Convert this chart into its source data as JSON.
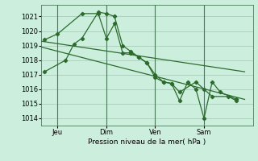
{
  "background_color": "#cceedd",
  "grid_color": "#aaccbb",
  "line_color": "#2d6b2d",
  "marker_color": "#2d6b2d",
  "ylabel": "Pression niveau de la mer( hPa )",
  "ylim": [
    1013.5,
    1021.8
  ],
  "yticks": [
    1014,
    1015,
    1016,
    1017,
    1018,
    1019,
    1020,
    1021
  ],
  "x_ticks_labels": [
    "Jeu",
    "Dim",
    "Ven",
    "Sam"
  ],
  "x_ticks_pos": [
    1,
    4,
    7,
    10
  ],
  "vlines_pos": [
    1,
    4,
    7,
    10
  ],
  "xlim": [
    0,
    13
  ],
  "series1_x": [
    0.2,
    1.5,
    2.0,
    2.5,
    3.5,
    4.0,
    4.5,
    5.0,
    5.5,
    6.0,
    6.5,
    7.0,
    7.5,
    8.0,
    8.5,
    9.0,
    9.5,
    10.0,
    10.5,
    11.0,
    12.0
  ],
  "series1_y": [
    1017.2,
    1018.0,
    1019.1,
    1019.5,
    1021.3,
    1021.2,
    1021.0,
    1019.0,
    1018.6,
    1018.2,
    1017.8,
    1017.0,
    1016.5,
    1016.4,
    1015.2,
    1016.5,
    1016.0,
    1014.0,
    1016.5,
    1015.8,
    1015.3
  ],
  "series2_x": [
    0.2,
    1.0,
    2.5,
    3.5,
    4.0,
    4.5,
    5.0,
    5.5,
    6.0,
    6.5,
    7.0,
    7.5,
    8.0,
    8.5,
    9.5,
    10.0,
    10.5,
    11.5,
    12.0
  ],
  "series2_y": [
    1019.4,
    1019.8,
    1021.2,
    1021.2,
    1019.5,
    1020.5,
    1018.5,
    1018.5,
    1018.2,
    1017.8,
    1016.8,
    1016.5,
    1016.4,
    1015.8,
    1016.5,
    1016.0,
    1015.5,
    1015.5,
    1015.2
  ],
  "trend1_x": [
    0.0,
    12.5
  ],
  "trend1_y": [
    1019.3,
    1017.2
  ],
  "trend2_x": [
    0.0,
    12.5
  ],
  "trend2_y": [
    1018.9,
    1015.3
  ]
}
